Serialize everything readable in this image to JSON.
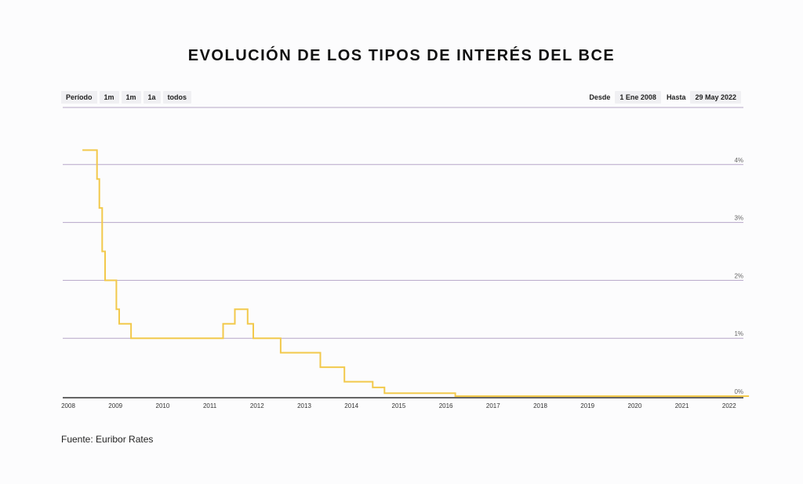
{
  "title": "EVOLUCIÓN DE LOS TIPOS DE INTERÉS DEL BCE",
  "toolbar": {
    "period_label": "Período",
    "buttons": [
      "1m",
      "1m",
      "1a",
      "todos"
    ],
    "from_label": "Desde",
    "from_value": "1 Ene 2008",
    "to_label": "Hasta",
    "to_value": "29 May 2022"
  },
  "source": "Fuente: Euribor Rates",
  "colors": {
    "line": "#f2c94c",
    "grid": "#b6a6c8",
    "axis": "#333333"
  },
  "chart_data": {
    "type": "line",
    "title": "EVOLUCIÓN DE LOS TIPOS DE INTERÉS DEL BCE",
    "xlabel": "",
    "ylabel": "",
    "x_ticks": [
      "2008",
      "2009",
      "2010",
      "2011",
      "2012",
      "2013",
      "2014",
      "2015",
      "2016",
      "2017",
      "2018",
      "2019",
      "2020",
      "2021",
      "2022"
    ],
    "y_ticks": [
      "0%",
      "1%",
      "2%",
      "3%",
      "4%"
    ],
    "ylim": [
      0,
      5
    ],
    "xlim": [
      2008.0,
      2022.42
    ],
    "grid": true,
    "step": true,
    "series": [
      {
        "name": "",
        "x": [
          2008.3,
          2008.61,
          2008.66,
          2008.72,
          2008.78,
          2008.86,
          2009.02,
          2009.08,
          2009.17,
          2009.33,
          2011.28,
          2011.53,
          2011.8,
          2011.92,
          2012.5,
          2013.34,
          2013.85,
          2014.45,
          2014.7,
          2016.2,
          2022.42
        ],
        "y": [
          4.25,
          3.75,
          3.25,
          2.5,
          2.0,
          2.0,
          1.5,
          1.25,
          1.25,
          1.0,
          1.25,
          1.5,
          1.25,
          1.0,
          0.75,
          0.5,
          0.25,
          0.15,
          0.05,
          0.0,
          0.0
        ]
      }
    ]
  }
}
